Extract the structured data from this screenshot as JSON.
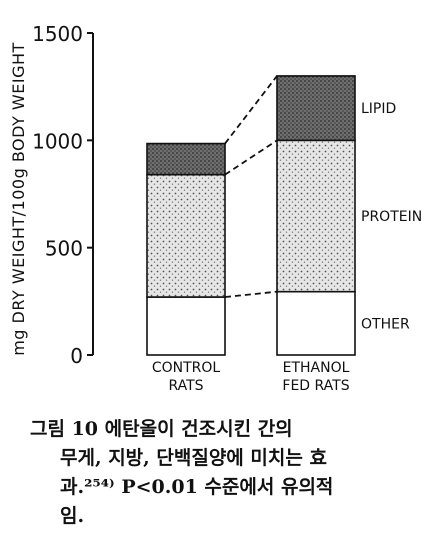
{
  "chart_data": {
    "type": "bar",
    "stacked": true,
    "ylabel": "mg DRY WEIGHT/100g BODY WEIGHT",
    "ylim": [
      0,
      1500
    ],
    "yticks": [
      0,
      500,
      1000,
      1500
    ],
    "categories": [
      "CONTROL RATS",
      "ETHANOL FED RATS"
    ],
    "category_lines": [
      [
        "CONTROL",
        "RATS"
      ],
      [
        "ETHANOL",
        "FED RATS"
      ]
    ],
    "series": [
      {
        "name": "OTHER",
        "values": [
          270,
          295
        ],
        "fill": "#ffffff"
      },
      {
        "name": "PROTEIN",
        "values": [
          570,
          705
        ],
        "fill": "#dcdcdc"
      },
      {
        "name": "LIPID",
        "values": [
          145,
          300
        ],
        "fill": "#8a8a8a"
      }
    ],
    "connectors": "dashed lines join matching segment boundaries of the two bars",
    "grid": false
  },
  "caption": {
    "lines": [
      "그림 10  에탄올이  건조시킨  간의",
      "무게, 지방, 단백질양에 미치는 효",
      "과.²⁵⁴⁾ P<0.01 수준에서 유의적",
      "임."
    ]
  }
}
